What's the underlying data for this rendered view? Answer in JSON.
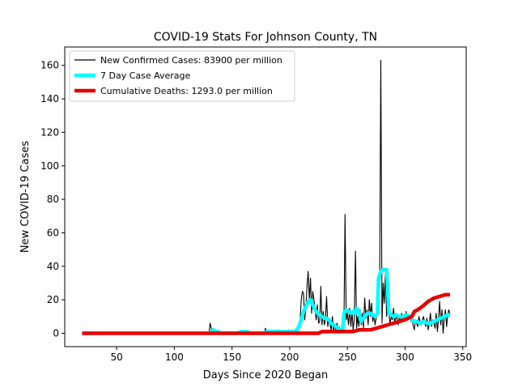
{
  "chart_data": {
    "type": "line",
    "title": "COVID-19 Stats For Johnson County, TN",
    "xlabel": "Days Since 2020 Began",
    "ylabel": "New COVID-19 Cases",
    "xlim": [
      5,
      353
    ],
    "ylim": [
      -8,
      171
    ],
    "xticks": [
      50,
      100,
      150,
      200,
      250,
      300,
      350
    ],
    "yticks": [
      0,
      20,
      40,
      60,
      80,
      100,
      120,
      140,
      160
    ],
    "grid": false,
    "legend_position": "top-left",
    "series": [
      {
        "name": "New Confirmed Cases: 83900 per million",
        "color": "#000000",
        "style": "thin",
        "points": [
          [
            20,
            0
          ],
          [
            60,
            0
          ],
          [
            90,
            0
          ],
          [
            120,
            0
          ],
          [
            130,
            0
          ],
          [
            131,
            6
          ],
          [
            133,
            0
          ],
          [
            135,
            0
          ],
          [
            160,
            0
          ],
          [
            161,
            1
          ],
          [
            162,
            0
          ],
          [
            178,
            0
          ],
          [
            179,
            3
          ],
          [
            180,
            0
          ],
          [
            190,
            0
          ],
          [
            191,
            2
          ],
          [
            192,
            0
          ],
          [
            198,
            0
          ],
          [
            199,
            2
          ],
          [
            200,
            0
          ],
          [
            205,
            0
          ],
          [
            206,
            3
          ],
          [
            207,
            1
          ],
          [
            209,
            8
          ],
          [
            210,
            20
          ],
          [
            211,
            25
          ],
          [
            212,
            24
          ],
          [
            213,
            8
          ],
          [
            214,
            15
          ],
          [
            215,
            28
          ],
          [
            216,
            37
          ],
          [
            217,
            20
          ],
          [
            218,
            33
          ],
          [
            219,
            12
          ],
          [
            220,
            25
          ],
          [
            221,
            20
          ],
          [
            222,
            14
          ],
          [
            223,
            8
          ],
          [
            224,
            17
          ],
          [
            225,
            6
          ],
          [
            226,
            7
          ],
          [
            227,
            28
          ],
          [
            228,
            5
          ],
          [
            229,
            13
          ],
          [
            230,
            5
          ],
          [
            231,
            8
          ],
          [
            232,
            22
          ],
          [
            233,
            4
          ],
          [
            234,
            9
          ],
          [
            235,
            5
          ],
          [
            236,
            2
          ],
          [
            237,
            10
          ],
          [
            238,
            1
          ],
          [
            239,
            5
          ],
          [
            240,
            2
          ],
          [
            241,
            6
          ],
          [
            242,
            0
          ],
          [
            243,
            4
          ],
          [
            244,
            1
          ],
          [
            245,
            3
          ],
          [
            246,
            12
          ],
          [
            247,
            2
          ],
          [
            248,
            71
          ],
          [
            249,
            8
          ],
          [
            250,
            12
          ],
          [
            251,
            5
          ],
          [
            252,
            15
          ],
          [
            253,
            4
          ],
          [
            254,
            13
          ],
          [
            255,
            2
          ],
          [
            256,
            8
          ],
          [
            257,
            49
          ],
          [
            258,
            3
          ],
          [
            259,
            10
          ],
          [
            260,
            4
          ],
          [
            261,
            14
          ],
          [
            262,
            5
          ],
          [
            263,
            12
          ],
          [
            264,
            3
          ],
          [
            265,
            21
          ],
          [
            266,
            9
          ],
          [
            267,
            14
          ],
          [
            268,
            5
          ],
          [
            269,
            20
          ],
          [
            270,
            10
          ],
          [
            271,
            18
          ],
          [
            272,
            7
          ],
          [
            273,
            11
          ],
          [
            274,
            5
          ],
          [
            275,
            9
          ],
          [
            276,
            18
          ],
          [
            277,
            32
          ],
          [
            278,
            28
          ],
          [
            279,
            163
          ],
          [
            280,
            6
          ],
          [
            281,
            30
          ],
          [
            282,
            18
          ],
          [
            283,
            36
          ],
          [
            284,
            10
          ],
          [
            285,
            20
          ],
          [
            286,
            12
          ],
          [
            287,
            6
          ],
          [
            288,
            10
          ],
          [
            289,
            8
          ],
          [
            290,
            15
          ],
          [
            291,
            7
          ],
          [
            292,
            9
          ],
          [
            293,
            10
          ],
          [
            294,
            5
          ],
          [
            295,
            9
          ],
          [
            296,
            7
          ],
          [
            297,
            12
          ],
          [
            298,
            8
          ],
          [
            299,
            10
          ],
          [
            300,
            9
          ],
          [
            301,
            13
          ],
          [
            302,
            8
          ],
          [
            303,
            10
          ],
          [
            304,
            11
          ],
          [
            305,
            7
          ],
          [
            306,
            8
          ],
          [
            307,
            5
          ],
          [
            308,
            2
          ],
          [
            309,
            8
          ],
          [
            310,
            6
          ],
          [
            311,
            4
          ],
          [
            312,
            10
          ],
          [
            313,
            7
          ],
          [
            314,
            5
          ],
          [
            315,
            8
          ],
          [
            316,
            10
          ],
          [
            317,
            6
          ],
          [
            318,
            4
          ],
          [
            319,
            9
          ],
          [
            320,
            2
          ],
          [
            321,
            6
          ],
          [
            322,
            12
          ],
          [
            323,
            4
          ],
          [
            324,
            8
          ],
          [
            325,
            6
          ],
          [
            326,
            3
          ],
          [
            327,
            12
          ],
          [
            328,
            1
          ],
          [
            329,
            9
          ],
          [
            330,
            19
          ],
          [
            331,
            5
          ],
          [
            332,
            14
          ],
          [
            333,
            0
          ],
          [
            334,
            9
          ],
          [
            335,
            14
          ],
          [
            336,
            4
          ],
          [
            337,
            11
          ],
          [
            338,
            14
          ],
          [
            339,
            11
          ]
        ]
      },
      {
        "name": "7 Day Case Average",
        "color": "#00ffff",
        "style": "thick",
        "points": [
          [
            130,
            0
          ],
          [
            132,
            1
          ],
          [
            134,
            2
          ],
          [
            136,
            1
          ],
          [
            138,
            1
          ],
          [
            140,
            0
          ],
          [
            155,
            0
          ],
          [
            158,
            1
          ],
          [
            160,
            1
          ],
          [
            163,
            1
          ],
          [
            165,
            0
          ],
          [
            178,
            0
          ],
          [
            180,
            1
          ],
          [
            185,
            1
          ],
          [
            190,
            1
          ],
          [
            195,
            1
          ],
          [
            200,
            1
          ],
          [
            205,
            1
          ],
          [
            208,
            4
          ],
          [
            210,
            8
          ],
          [
            212,
            13
          ],
          [
            214,
            16
          ],
          [
            216,
            19
          ],
          [
            218,
            20
          ],
          [
            220,
            17
          ],
          [
            222,
            14
          ],
          [
            224,
            12
          ],
          [
            226,
            11
          ],
          [
            228,
            10
          ],
          [
            230,
            9
          ],
          [
            232,
            9
          ],
          [
            234,
            8
          ],
          [
            236,
            6
          ],
          [
            238,
            5
          ],
          [
            240,
            4
          ],
          [
            242,
            3
          ],
          [
            244,
            2
          ],
          [
            246,
            3
          ],
          [
            247,
            12
          ],
          [
            249,
            14
          ],
          [
            251,
            13
          ],
          [
            253,
            12
          ],
          [
            255,
            13
          ],
          [
            257,
            12
          ],
          [
            258,
            15
          ],
          [
            260,
            13
          ],
          [
            262,
            7
          ],
          [
            264,
            9
          ],
          [
            266,
            11
          ],
          [
            268,
            12
          ],
          [
            270,
            12
          ],
          [
            272,
            11
          ],
          [
            274,
            10
          ],
          [
            276,
            12
          ],
          [
            277,
            33
          ],
          [
            279,
            37
          ],
          [
            281,
            38
          ],
          [
            283,
            38
          ],
          [
            284,
            38
          ],
          [
            286,
            12
          ],
          [
            288,
            11
          ],
          [
            290,
            10
          ],
          [
            292,
            11
          ],
          [
            295,
            10
          ],
          [
            298,
            10
          ],
          [
            301,
            11
          ],
          [
            304,
            10
          ],
          [
            306,
            8
          ],
          [
            308,
            7
          ],
          [
            310,
            7
          ],
          [
            313,
            6
          ],
          [
            316,
            7
          ],
          [
            319,
            6
          ],
          [
            322,
            6
          ],
          [
            325,
            7
          ],
          [
            328,
            8
          ],
          [
            331,
            9
          ],
          [
            334,
            10
          ],
          [
            337,
            11
          ],
          [
            339,
            11
          ]
        ]
      },
      {
        "name": "Cumulative Deaths: 1293.0 per million",
        "color": "#e60000",
        "style": "thick",
        "points": [
          [
            20,
            0
          ],
          [
            100,
            0
          ],
          [
            200,
            0
          ],
          [
            225,
            0
          ],
          [
            228,
            1
          ],
          [
            240,
            1
          ],
          [
            250,
            1
          ],
          [
            255,
            1
          ],
          [
            260,
            2
          ],
          [
            270,
            2
          ],
          [
            275,
            3
          ],
          [
            280,
            4
          ],
          [
            285,
            5
          ],
          [
            290,
            6
          ],
          [
            295,
            7
          ],
          [
            300,
            8
          ],
          [
            303,
            9
          ],
          [
            306,
            10
          ],
          [
            308,
            13
          ],
          [
            311,
            14
          ],
          [
            315,
            16
          ],
          [
            320,
            19
          ],
          [
            325,
            21
          ],
          [
            330,
            22
          ],
          [
            335,
            23
          ],
          [
            339,
            23
          ]
        ]
      }
    ]
  }
}
